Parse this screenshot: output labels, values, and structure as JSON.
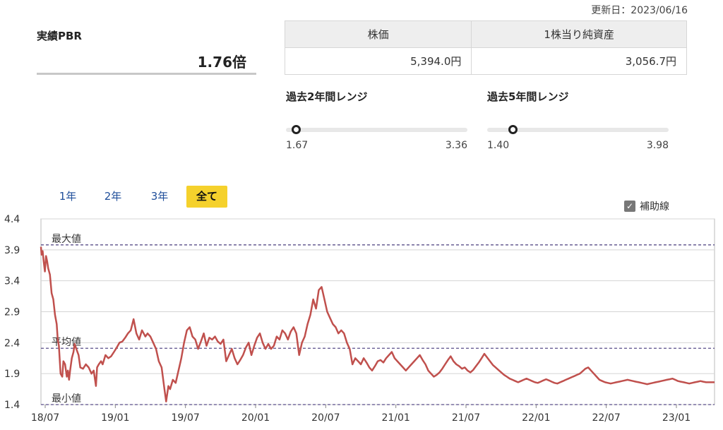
{
  "updated": "更新日：2023/06/16",
  "pbr": {
    "label": "実績PBR",
    "value": "1.76倍"
  },
  "stats": {
    "price_label": "株価",
    "bps_label": "1株当り純資産",
    "price": "5,394.0円",
    "bps": "3,056.7円"
  },
  "range2y": {
    "title": "過去2年間レンジ",
    "min": "1.67",
    "max": "3.36",
    "min_value": 1.67,
    "max_value": 3.36,
    "current": 1.76
  },
  "range5y": {
    "title": "過去5年間レンジ",
    "min": "1.40",
    "max": "3.98",
    "min_value": 1.4,
    "max_value": 3.98,
    "current": 1.76
  },
  "tabs": [
    {
      "label": "1年",
      "active": false
    },
    {
      "label": "2年",
      "active": false
    },
    {
      "label": "3年",
      "active": false
    },
    {
      "label": "全て",
      "active": true
    }
  ],
  "aux": {
    "label": "補助線",
    "checked": true,
    "check_icon": "checkmark-icon"
  },
  "colors": {
    "line": "#c0504d",
    "ref": "#5a4f8a",
    "accent": "#f5d12c",
    "link": "#1f4e9a"
  },
  "chart_data": {
    "type": "line",
    "x_ticks": [
      "18/07",
      "19/01",
      "19/07",
      "20/01",
      "20/07",
      "21/01",
      "21/07",
      "22/01",
      "22/07",
      "23/01"
    ],
    "y_ticks": [
      "4.4",
      "3.9",
      "3.4",
      "2.9",
      "2.4",
      "1.9",
      "1.4"
    ],
    "ylim": [
      1.4,
      4.4
    ],
    "grid": true,
    "reference_lines": [
      {
        "label": "最大値",
        "value": 3.98
      },
      {
        "label": "平均値",
        "value": 2.31
      },
      {
        "label": "最小値",
        "value": 1.4
      }
    ],
    "series": [
      {
        "x": [
          0,
          0.1,
          0.3,
          0.5,
          0.7,
          0.9,
          1.1,
          1.3,
          1.6,
          1.9,
          2.2,
          2.5,
          2.8,
          3.0,
          3.2,
          3.5,
          3.8,
          4.0,
          4.3,
          4.6,
          4.8,
          5.0,
          5.2,
          5.5,
          5.8,
          6.0,
          6.3,
          6.7,
          7.0,
          7.5,
          8.0,
          8.5,
          9.0,
          9.4,
          9.8,
          10.0,
          10.3,
          10.7,
          11.0,
          11.5,
          12.0,
          12.5,
          13.0,
          13.5,
          14.0,
          14.5,
          15.0,
          15.5,
          16.0,
          16.5,
          17.0,
          17.5,
          18.0,
          18.3,
          18.6,
          19.0,
          19.5,
          20.0,
          20.5,
          21.0,
          21.5,
          22.0,
          22.3,
          22.7,
          23.0,
          23.5,
          24.0,
          24.5,
          25.0,
          25.5,
          26.0,
          26.5,
          27.0,
          27.5,
          28.0,
          28.5,
          29.0,
          29.5,
          30.0,
          30.5,
          31.0,
          31.5,
          32.0,
          32.5,
          33.0,
          33.5,
          34.0,
          34.5,
          35.0,
          35.5,
          36.0,
          36.5,
          37.0,
          37.5,
          38.0,
          38.5,
          39.0,
          39.5,
          40.0,
          40.5,
          41.0,
          41.5,
          42.0,
          42.5,
          43.0,
          43.5,
          44.0,
          44.5,
          45.0,
          45.5,
          46.0,
          46.5,
          47.0,
          47.5,
          48.0,
          48.5,
          49.0,
          49.5,
          50.0,
          50.5,
          51.0,
          51.5,
          52.0,
          52.5,
          53.0,
          53.5,
          54.0,
          54.5,
          55.0,
          55.5,
          56.0,
          56.5,
          57.0,
          57.5,
          58.0,
          58.5,
          59.0,
          59.5,
          60.0,
          60.5,
          61.0,
          61.5,
          62.0,
          62.5,
          63.0,
          63.5,
          64.0,
          64.5,
          65.0,
          65.5,
          66.0,
          66.5,
          67.0,
          67.5,
          68.0,
          68.5,
          69.0,
          69.5,
          70.0,
          70.5,
          71.0,
          71.5,
          72.0,
          72.5,
          73.0,
          73.5,
          74.0,
          74.5,
          75.0,
          75.5,
          76.0,
          76.5,
          77.0,
          77.5,
          78.0,
          78.5,
          79.0,
          79.5,
          80.0,
          80.5,
          81.0,
          81.5,
          82.0,
          82.5,
          83.0,
          83.5,
          84.0,
          84.5,
          85.0,
          85.5,
          86.0,
          86.5,
          87.0,
          87.5,
          88.0,
          88.5,
          89.0,
          89.5,
          90.0,
          90.5,
          91.0,
          91.5,
          92.0,
          92.5,
          93.0,
          93.5,
          94.0,
          94.5,
          95.0,
          95.5,
          96.0,
          96.5,
          97.0,
          97.5,
          98.0,
          98.5,
          99.0,
          99.5,
          100.0,
          100.5,
          101.0,
          101.5,
          102.0,
          102.5,
          103.0,
          103.5,
          104.0,
          104.5,
          105.0,
          105.5,
          106.0,
          106.5,
          107.0,
          107.5,
          108.0,
          108.5,
          109.0,
          109.5,
          110.0,
          110.5,
          111.0,
          111.5,
          112.0,
          112.5,
          113.0,
          113.5,
          114.0,
          114.5,
          115.0,
          115.5,
          116.0,
          116.5,
          117.0,
          117.5,
          118.0,
          118.5,
          119.0,
          119.5,
          120.0
        ],
        "y": [
          3.95,
          3.82,
          3.88,
          3.7,
          3.55,
          3.8,
          3.72,
          3.6,
          3.5,
          3.2,
          3.1,
          2.85,
          2.7,
          2.45,
          2.35,
          1.9,
          1.85,
          2.1,
          2.05,
          1.85,
          1.95,
          1.8,
          1.95,
          2.15,
          2.25,
          2.38,
          2.3,
          2.2,
          2.0,
          1.98,
          2.05,
          2.0,
          1.9,
          1.95,
          1.7,
          2.0,
          2.05,
          2.1,
          2.05,
          2.2,
          2.15,
          2.18,
          2.25,
          2.32,
          2.4,
          2.42,
          2.48,
          2.55,
          2.6,
          2.78,
          2.55,
          2.45,
          2.6,
          2.55,
          2.5,
          2.55,
          2.5,
          2.4,
          2.3,
          2.1,
          2.0,
          1.65,
          1.45,
          1.7,
          1.65,
          1.8,
          1.75,
          1.95,
          2.15,
          2.4,
          2.6,
          2.65,
          2.5,
          2.45,
          2.3,
          2.42,
          2.55,
          2.35,
          2.48,
          2.45,
          2.5,
          2.42,
          2.38,
          2.45,
          2.1,
          2.2,
          2.3,
          2.15,
          2.05,
          2.12,
          2.2,
          2.32,
          2.4,
          2.2,
          2.35,
          2.48,
          2.55,
          2.4,
          2.3,
          2.38,
          2.3,
          2.35,
          2.5,
          2.45,
          2.6,
          2.55,
          2.45,
          2.58,
          2.65,
          2.55,
          2.2,
          2.4,
          2.5,
          2.7,
          2.85,
          3.1,
          2.95,
          3.25,
          3.3,
          3.1,
          2.9,
          2.8,
          2.7,
          2.65,
          2.55,
          2.6,
          2.55,
          2.4,
          2.3,
          2.05,
          2.15,
          2.1,
          2.05,
          2.15,
          2.08,
          2.0,
          1.95,
          2.02,
          2.1,
          2.12,
          2.08,
          2.15,
          2.2,
          2.25,
          2.15,
          2.1,
          2.05,
          2.0,
          1.95,
          2.0,
          2.05,
          2.1,
          2.15,
          2.2,
          2.12,
          2.05,
          1.95,
          1.9,
          1.85,
          1.88,
          1.92,
          1.98,
          2.05,
          2.12,
          2.18,
          2.1,
          2.05,
          2.02,
          1.98,
          2.0,
          1.95,
          1.92,
          1.96,
          2.02,
          2.08,
          2.15,
          2.22,
          2.16,
          2.1,
          2.04,
          2.0,
          1.96,
          1.92,
          1.88,
          1.85,
          1.82,
          1.8,
          1.78,
          1.76,
          1.78,
          1.8,
          1.82,
          1.8,
          1.78,
          1.76,
          1.75,
          1.77,
          1.79,
          1.81,
          1.79,
          1.77,
          1.75,
          1.74,
          1.76,
          1.78,
          1.8,
          1.82,
          1.84,
          1.86,
          1.88,
          1.9,
          1.94,
          1.98,
          2.0,
          1.95,
          1.9,
          1.85,
          1.8,
          1.78,
          1.76,
          1.75,
          1.74,
          1.75,
          1.76,
          1.77,
          1.78,
          1.79,
          1.8,
          1.79,
          1.78,
          1.77,
          1.76,
          1.75,
          1.74,
          1.73,
          1.74,
          1.75,
          1.76,
          1.77,
          1.78,
          1.79,
          1.8,
          1.81,
          1.82,
          1.8,
          1.78,
          1.77,
          1.76,
          1.75,
          1.74,
          1.75,
          1.76,
          1.77,
          1.78,
          1.77,
          1.76,
          1.76,
          1.76,
          1.76
        ]
      }
    ]
  }
}
